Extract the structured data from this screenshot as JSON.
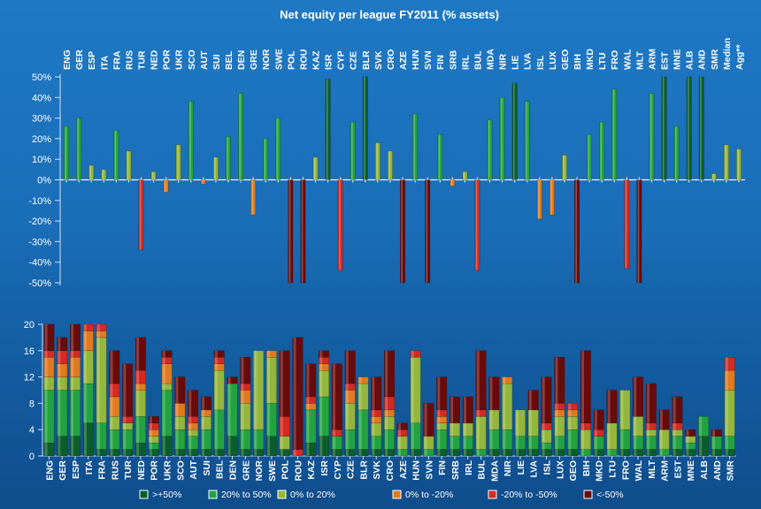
{
  "chart_data": [
    {
      "type": "bar",
      "title": "Net equity per league FY2011 (% assets)",
      "categories": [
        "ENG",
        "GER",
        "ESP",
        "ITA",
        "FRA",
        "RUS",
        "TUR",
        "NED",
        "POR",
        "UKR",
        "SCO",
        "AUT",
        "SUI",
        "BEL",
        "DEN",
        "GRE",
        "NOR",
        "SWE",
        "POL",
        "ROU",
        "KAZ",
        "ISR",
        "CYP",
        "CZE",
        "BLR",
        "SVK",
        "CRO",
        "AZE",
        "HUN",
        "SVN",
        "FIN",
        "SRB",
        "IRL",
        "BUL",
        "MDA",
        "NIR",
        "LIE",
        "LVA",
        "ISL",
        "LUX",
        "GEO",
        "BIH",
        "MKD",
        "LTU",
        "FRO",
        "WAL",
        "MLT",
        "ARM",
        "EST",
        "MNE",
        "ALB",
        "AND",
        "SMR",
        "Median",
        "Agg**"
      ],
      "values": [
        26,
        30,
        7,
        5,
        24,
        14,
        -34,
        4,
        -6,
        17,
        38,
        -2,
        11,
        21,
        42,
        -17,
        20,
        30,
        -50,
        -50,
        11,
        49,
        -44,
        28,
        50,
        18,
        14,
        -50,
        32,
        -50,
        22,
        -3,
        4,
        -44,
        29,
        40,
        47,
        38,
        -19,
        -17,
        12,
        -50,
        22,
        28,
        44,
        -43,
        -50,
        42,
        50,
        26,
        50,
        50,
        3,
        17,
        15
      ],
      "ylim": [
        -50,
        50
      ],
      "yticks": [
        -50,
        -40,
        -30,
        -20,
        -10,
        0,
        10,
        20,
        30,
        40,
        50
      ],
      "ytick_suffix": "%",
      "colors": {
        "pos_strong": "#0b5e2a",
        "pos": "#23a340",
        "pos_weak": "#93b63b",
        "neg_weak": "#e07a1f",
        "neg": "#d42a22",
        "neg_strong": "#6a0b0b"
      }
    },
    {
      "type": "bar",
      "stacked": true,
      "categories": [
        "ENG",
        "GER",
        "ESP",
        "ITA",
        "FRA",
        "RUS",
        "TUR",
        "NED",
        "POR",
        "UKR",
        "SCO",
        "AUT",
        "SUI",
        "BEL",
        "DEN",
        "GRE",
        "NOR",
        "SWE",
        "POL",
        "ROU",
        "KAZ",
        "ISR",
        "CYP",
        "CZE",
        "BLR",
        "SVK",
        "CRO",
        "AZE",
        "HUN",
        "SVN",
        "FIN",
        "SRB",
        "IRL",
        "BUL",
        "MDA",
        "NIR",
        "LIE",
        "LVA",
        "ISL",
        "LUX",
        "GEO",
        "BIH",
        "MKD",
        "LTU",
        "FRO",
        "WAL",
        "MLT",
        "ARM",
        "EST",
        "MNE",
        "ALB",
        "AND",
        "SMR"
      ],
      "ylim": [
        0,
        20
      ],
      "yticks": [
        0,
        4,
        8,
        12,
        16,
        20
      ],
      "series": [
        {
          "name": ">+50%",
          "color": "#0b5e2a",
          "values": [
            2,
            3,
            3,
            5,
            1,
            1,
            1,
            2,
            1,
            3,
            1,
            1,
            1,
            1,
            3,
            1,
            1,
            3,
            1,
            0,
            2,
            3,
            1,
            1,
            1,
            1,
            1,
            0,
            1,
            0,
            1,
            1,
            1,
            0,
            1,
            1,
            1,
            1,
            1,
            1,
            1,
            0,
            1,
            0,
            1,
            1,
            1,
            0,
            1,
            1,
            3,
            1,
            1
          ]
        },
        {
          "name": "20% to 50%",
          "color": "#23a340",
          "values": [
            8,
            7,
            7,
            6,
            4,
            3,
            3,
            4,
            1,
            7,
            3,
            2,
            3,
            6,
            8,
            3,
            3,
            5,
            0,
            0,
            5,
            6,
            2,
            3,
            6,
            2,
            3,
            1,
            4,
            1,
            3,
            2,
            2,
            1,
            3,
            3,
            2,
            2,
            1,
            2,
            3,
            1,
            2,
            1,
            3,
            2,
            2,
            1,
            2,
            1,
            3,
            2,
            2
          ]
        },
        {
          "name": "0% to 20%",
          "color": "#93b63b",
          "values": [
            2,
            2,
            2,
            5,
            13,
            2,
            1,
            4,
            1,
            1,
            2,
            1,
            2,
            6,
            0,
            4,
            12,
            7,
            2,
            0,
            0,
            4,
            0,
            4,
            4,
            2,
            2,
            2,
            10,
            2,
            1,
            2,
            2,
            5,
            3,
            7,
            4,
            4,
            2,
            3,
            2,
            3,
            0,
            4,
            6,
            3,
            1,
            3,
            1,
            1,
            0,
            0,
            7
          ]
        },
        {
          "name": "0% to -20%",
          "color": "#e07a1f",
          "values": [
            3,
            2,
            3,
            3,
            1,
            3,
            0,
            1,
            1,
            3,
            2,
            1,
            1,
            1,
            0,
            2,
            0,
            1,
            0,
            0,
            1,
            1,
            0,
            2,
            1,
            1,
            1,
            0,
            0,
            0,
            1,
            0,
            0,
            0,
            0,
            1,
            0,
            0,
            0,
            1,
            1,
            0,
            0,
            0,
            0,
            0,
            0,
            0,
            0,
            0,
            0,
            0,
            3
          ]
        },
        {
          "name": "-20% to -50%",
          "color": "#d42a22",
          "values": [
            1,
            2,
            1,
            1,
            1,
            2,
            1,
            2,
            1,
            1,
            0,
            1,
            0,
            1,
            0,
            1,
            0,
            0,
            3,
            1,
            1,
            1,
            1,
            1,
            0,
            1,
            2,
            1,
            1,
            0,
            1,
            0,
            0,
            1,
            0,
            0,
            0,
            0,
            1,
            1,
            1,
            1,
            1,
            0,
            0,
            0,
            1,
            0,
            1,
            0,
            0,
            0,
            2
          ]
        },
        {
          "name": "<-50%",
          "color": "#6a0b0b",
          "values": [
            4,
            2,
            4,
            0,
            0,
            5,
            8,
            5,
            1,
            1,
            4,
            4,
            2,
            1,
            1,
            4,
            0,
            0,
            10,
            17,
            5,
            1,
            10,
            5,
            0,
            5,
            7,
            1,
            0,
            5,
            5,
            4,
            4,
            9,
            5,
            0,
            0,
            3,
            7,
            7,
            0,
            11,
            3,
            5,
            0,
            6,
            6,
            3,
            4,
            1,
            0,
            1,
            0
          ]
        }
      ]
    }
  ]
}
